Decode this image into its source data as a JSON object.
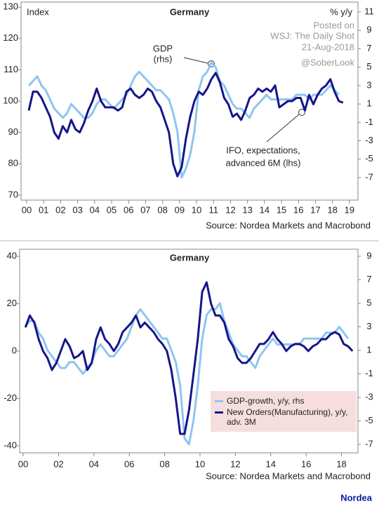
{
  "chart_data": [
    {
      "type": "line",
      "title": "Germany",
      "ylabel": "Index",
      "y2label": "% y/y",
      "annotations": [
        "GDP",
        "(rhs)",
        "IFO, expectations,",
        "advanced 6M (lhs)"
      ],
      "watermark": [
        "Posted on",
        "WSJ: The Daily Shot",
        "21-Aug-2018",
        "@SoberLook"
      ],
      "source": "Source: Nordea Markets and Macrobond",
      "xlim": [
        1999.67,
        2019.5
      ],
      "ylim": [
        68.4,
        131.6
      ],
      "y2lim": [
        -9.44,
        12.07
      ],
      "xticks": [
        {
          "value": 2000,
          "label": "00"
        },
        {
          "value": 2001,
          "label": "01"
        },
        {
          "value": 2002,
          "label": "02"
        },
        {
          "value": 2003,
          "label": "03"
        },
        {
          "value": 2004,
          "label": "04"
        },
        {
          "value": 2005,
          "label": "05"
        },
        {
          "value": 2006,
          "label": "06"
        },
        {
          "value": 2007,
          "label": "07"
        },
        {
          "value": 2008,
          "label": "08"
        },
        {
          "value": 2009,
          "label": "09"
        },
        {
          "value": 2010,
          "label": "10"
        },
        {
          "value": 2011,
          "label": "11"
        },
        {
          "value": 2012,
          "label": "12"
        },
        {
          "value": 2013,
          "label": "13"
        },
        {
          "value": 2014,
          "label": "14"
        },
        {
          "value": 2015,
          "label": "15"
        },
        {
          "value": 2016,
          "label": "16"
        },
        {
          "value": 2017,
          "label": "17"
        },
        {
          "value": 2018,
          "label": "18"
        },
        {
          "value": 2019,
          "label": "19"
        }
      ],
      "yticks": [
        70,
        80,
        90,
        100,
        110,
        120,
        130
      ],
      "y2ticks": [
        -7,
        -5,
        -3,
        -1,
        1,
        3,
        5,
        7,
        9,
        11
      ],
      "series": [
        {
          "color": "#8ec5f0",
          "axis": "y2",
          "x": [
            2000.125,
            2000.375,
            2000.625,
            2000.875,
            2001.125,
            2001.375,
            2001.625,
            2001.875,
            2002.125,
            2002.375,
            2002.625,
            2002.875,
            2003.125,
            2003.375,
            2003.625,
            2003.875,
            2004.125,
            2004.375,
            2004.625,
            2004.875,
            2005.125,
            2005.375,
            2005.625,
            2005.875,
            2006.125,
            2006.375,
            2006.625,
            2006.875,
            2007.125,
            2007.375,
            2007.625,
            2007.875,
            2008.125,
            2008.375,
            2008.625,
            2008.875,
            2009.125,
            2009.375,
            2009.625,
            2009.875,
            2010.125,
            2010.375,
            2010.625,
            2010.875,
            2011.125,
            2011.375,
            2011.625,
            2011.875,
            2012.125,
            2012.375,
            2012.625,
            2012.875,
            2013.125,
            2013.375,
            2013.625,
            2013.875,
            2014.125,
            2014.375,
            2014.625,
            2014.875,
            2015.125,
            2015.375,
            2015.625,
            2015.875,
            2016.125,
            2016.375,
            2016.625,
            2016.875,
            2017.125,
            2017.375,
            2017.625,
            2017.875,
            2018.125,
            2018.375
          ],
          "values": [
            3,
            3.5,
            4,
            3,
            2.5,
            1.5,
            0.5,
            0,
            -0.5,
            0,
            1,
            0.5,
            0,
            -0.5,
            -0.5,
            0,
            1,
            1.5,
            1.5,
            1,
            0.5,
            1,
            1.5,
            2,
            3,
            4,
            4.5,
            4,
            3.5,
            3,
            2.5,
            2.5,
            2,
            1.5,
            0,
            -2,
            -7,
            -6,
            -4.5,
            -2,
            2.5,
            4,
            4.5,
            5.5,
            5,
            3.5,
            3,
            2,
            1,
            0.5,
            0.5,
            0,
            -0.5,
            0.5,
            1,
            1.5,
            2,
            1.5,
            1.5,
            1.5,
            1.5,
            1.5,
            1.5,
            2,
            2,
            2,
            1.5,
            2,
            2,
            2,
            2.5,
            3,
            2.5,
            2
          ]
        },
        {
          "color": "#15158a",
          "axis": "y",
          "x": [
            2000.125,
            2000.375,
            2000.625,
            2000.875,
            2001.125,
            2001.375,
            2001.625,
            2001.875,
            2002.125,
            2002.375,
            2002.625,
            2002.875,
            2003.125,
            2003.375,
            2003.625,
            2003.875,
            2004.125,
            2004.375,
            2004.625,
            2004.875,
            2005.125,
            2005.375,
            2005.625,
            2005.875,
            2006.125,
            2006.375,
            2006.625,
            2006.875,
            2007.125,
            2007.375,
            2007.625,
            2007.875,
            2008.125,
            2008.375,
            2008.625,
            2008.875,
            2009.125,
            2009.375,
            2009.625,
            2009.875,
            2010.125,
            2010.375,
            2010.625,
            2010.875,
            2011.125,
            2011.375,
            2011.625,
            2011.875,
            2012.125,
            2012.375,
            2012.625,
            2012.875,
            2013.125,
            2013.375,
            2013.625,
            2013.875,
            2014.125,
            2014.375,
            2014.625,
            2014.875,
            2015.125,
            2015.375,
            2015.625,
            2015.875,
            2016.125,
            2016.375,
            2016.625,
            2016.875,
            2017.125,
            2017.375,
            2017.625,
            2017.875,
            2018.125,
            2018.375,
            2018.625
          ],
          "values": [
            97,
            103,
            103,
            101,
            98,
            95,
            90,
            88,
            92,
            90,
            94,
            91,
            90,
            93,
            97,
            100,
            104,
            100,
            98,
            98,
            98,
            97,
            98,
            103,
            104,
            102,
            101,
            102,
            104,
            103,
            100,
            98,
            94,
            90,
            80,
            76,
            79,
            88,
            95,
            100,
            103,
            102,
            104,
            107,
            109,
            106,
            101,
            99,
            95,
            96,
            94,
            97,
            101,
            102,
            104,
            103,
            104,
            103,
            105,
            98,
            99,
            100,
            100,
            101,
            101,
            97,
            102,
            99,
            102,
            104,
            105,
            107,
            103,
            100,
            99.5
          ]
        }
      ]
    },
    {
      "type": "line",
      "title": "Germany",
      "source": "Source: Nordea Markets and Macrobond",
      "brand": "Nordea",
      "xlim": [
        1999.8,
        2018.93
      ],
      "ylim": [
        -43,
        43
      ],
      "y2lim": [
        -7.72,
        9.6
      ],
      "xticks": [
        {
          "value": 2000,
          "label": "00"
        },
        {
          "value": 2002,
          "label": "02"
        },
        {
          "value": 2004,
          "label": "04"
        },
        {
          "value": 2006,
          "label": "06"
        },
        {
          "value": 2008,
          "label": "08"
        },
        {
          "value": 2010,
          "label": "10"
        },
        {
          "value": 2012,
          "label": "12"
        },
        {
          "value": 2014,
          "label": "14"
        },
        {
          "value": 2016,
          "label": "16"
        },
        {
          "value": 2018,
          "label": "18"
        }
      ],
      "yticks": [
        -40,
        -20,
        0,
        20,
        40
      ],
      "y2ticks": [
        -7,
        -5,
        -3,
        -1,
        1,
        3,
        5,
        7,
        9
      ],
      "series": [
        {
          "name": "GDP-growth, y/y, rhs",
          "color": "#8ec5f0",
          "axis": "y2",
          "x": [
            2000.125,
            2000.375,
            2000.625,
            2000.875,
            2001.125,
            2001.375,
            2001.625,
            2001.875,
            2002.125,
            2002.375,
            2002.625,
            2002.875,
            2003.125,
            2003.375,
            2003.625,
            2003.875,
            2004.125,
            2004.375,
            2004.625,
            2004.875,
            2005.125,
            2005.375,
            2005.625,
            2005.875,
            2006.125,
            2006.375,
            2006.625,
            2006.875,
            2007.125,
            2007.375,
            2007.625,
            2007.875,
            2008.125,
            2008.375,
            2008.625,
            2008.875,
            2009.125,
            2009.375,
            2009.625,
            2009.875,
            2010.125,
            2010.375,
            2010.625,
            2010.875,
            2011.125,
            2011.375,
            2011.625,
            2011.875,
            2012.125,
            2012.375,
            2012.625,
            2012.875,
            2013.125,
            2013.375,
            2013.625,
            2013.875,
            2014.125,
            2014.375,
            2014.625,
            2014.875,
            2015.125,
            2015.375,
            2015.625,
            2015.875,
            2016.125,
            2016.375,
            2016.625,
            2016.875,
            2017.125,
            2017.375,
            2017.625,
            2017.875,
            2018.125,
            2018.375
          ],
          "values": [
            3,
            3.5,
            3.5,
            2.5,
            2,
            1,
            0.5,
            0,
            -0.5,
            -0.5,
            0,
            0,
            -0.5,
            -1,
            -0.5,
            0,
            1,
            1.5,
            1,
            0.5,
            0.5,
            1,
            1.5,
            2,
            3,
            4,
            4.5,
            4,
            3.5,
            3,
            2.5,
            2,
            2,
            1,
            0,
            -2,
            -6.5,
            -7,
            -5,
            -2,
            2,
            4,
            4.5,
            4.5,
            5,
            3.5,
            2.5,
            1.5,
            1,
            0.5,
            0.5,
            0,
            -0.5,
            0.5,
            1,
            1.5,
            2,
            1.5,
            1.5,
            1.5,
            1.5,
            1.5,
            1.5,
            2,
            2,
            2,
            2,
            2,
            2.5,
            2.5,
            2.5,
            3,
            2.5,
            2
          ]
        },
        {
          "name": "New Orders(Manufacturing), y/y, adv. 3M",
          "color": "#15158a",
          "axis": "y",
          "x": [
            2000.125,
            2000.375,
            2000.625,
            2000.875,
            2001.125,
            2001.375,
            2001.625,
            2001.875,
            2002.125,
            2002.375,
            2002.625,
            2002.875,
            2003.125,
            2003.375,
            2003.625,
            2003.875,
            2004.125,
            2004.375,
            2004.625,
            2004.875,
            2005.125,
            2005.375,
            2005.625,
            2005.875,
            2006.125,
            2006.375,
            2006.625,
            2006.875,
            2007.125,
            2007.375,
            2007.625,
            2007.875,
            2008.125,
            2008.375,
            2008.625,
            2008.875,
            2009.125,
            2009.375,
            2009.625,
            2009.875,
            2010.125,
            2010.375,
            2010.625,
            2010.875,
            2011.125,
            2011.375,
            2011.625,
            2011.875,
            2012.125,
            2012.375,
            2012.625,
            2012.875,
            2013.125,
            2013.375,
            2013.625,
            2013.875,
            2014.125,
            2014.375,
            2014.625,
            2014.875,
            2015.125,
            2015.375,
            2015.625,
            2015.875,
            2016.125,
            2016.375,
            2016.625,
            2016.875,
            2017.125,
            2017.375,
            2017.625,
            2017.875,
            2018.125,
            2018.375,
            2018.625
          ],
          "values": [
            10,
            15,
            12,
            5,
            0,
            -3,
            -8,
            -5,
            0,
            5,
            2,
            -3,
            -2,
            0,
            -8,
            -5,
            5,
            10,
            5,
            3,
            0,
            3,
            8,
            10,
            12,
            15,
            10,
            12,
            10,
            8,
            5,
            3,
            0,
            -8,
            -20,
            -35,
            -35,
            -25,
            -10,
            5,
            25,
            29,
            20,
            15,
            15,
            12,
            5,
            2,
            -3,
            -5,
            -5,
            -3,
            0,
            3,
            3,
            5,
            8,
            5,
            3,
            0,
            2,
            3,
            3,
            2,
            0,
            2,
            3,
            5,
            5,
            7,
            8,
            7,
            3,
            2,
            0
          ]
        }
      ]
    }
  ]
}
